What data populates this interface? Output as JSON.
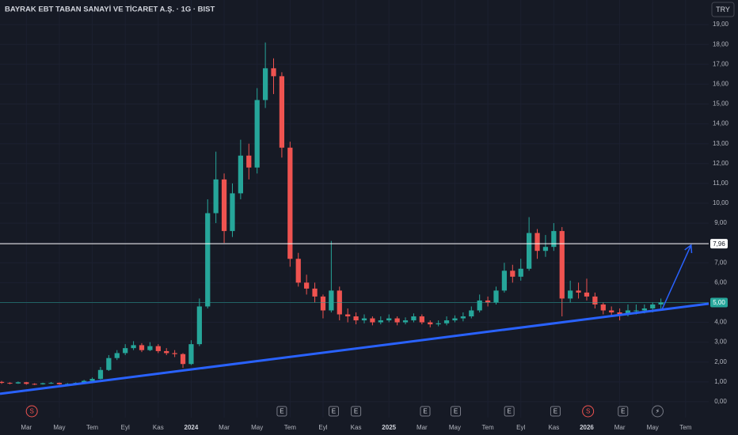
{
  "chart_data": {
    "type": "candlestick",
    "title": "BAYRAK EBT TABAN SANAYİ VE TİCARET A.Ş. · 1G · BIST",
    "currency": "TRY",
    "up_color": "#26a69a",
    "down_color": "#ef5350",
    "x": [
      0.5,
      1,
      1.5,
      2,
      2.5,
      3,
      3.5,
      4,
      4.5,
      5,
      5.5,
      6,
      6.5,
      7,
      7.5,
      8,
      8.5,
      9,
      9.5,
      10,
      10.5,
      11,
      11.5,
      12,
      12.5,
      13,
      13.5,
      14,
      14.5,
      15,
      15.5,
      16,
      16.5,
      17,
      17.5,
      18,
      18.5,
      19,
      19.5,
      20,
      20.5,
      21,
      21.5,
      22,
      22.5,
      23,
      23.5,
      24,
      24.5,
      25,
      25.5,
      26,
      26.5,
      27,
      27.5,
      28,
      28.5,
      29,
      29.5,
      30,
      30.5,
      31,
      31.5,
      32,
      32.5,
      33,
      33.5,
      34,
      34.5,
      35,
      35.5,
      36,
      36.5,
      37,
      37.5,
      38,
      38.5,
      39,
      39.5,
      40,
      40.5
    ],
    "ohlc": [
      [
        1.0,
        1.05,
        0.9,
        0.95
      ],
      [
        0.95,
        0.98,
        0.88,
        0.92
      ],
      [
        0.92,
        1.02,
        0.9,
        0.98
      ],
      [
        0.98,
        1.0,
        0.86,
        0.9
      ],
      [
        0.9,
        0.93,
        0.84,
        0.88
      ],
      [
        0.88,
        0.96,
        0.86,
        0.93
      ],
      [
        0.93,
        0.99,
        0.9,
        0.95
      ],
      [
        0.95,
        0.97,
        0.85,
        0.88
      ],
      [
        0.88,
        0.94,
        0.86,
        0.9
      ],
      [
        0.9,
        0.98,
        0.88,
        0.95
      ],
      [
        0.95,
        1.1,
        0.93,
        1.05
      ],
      [
        1.05,
        1.22,
        1.02,
        1.15
      ],
      [
        1.15,
        1.75,
        1.12,
        1.6
      ],
      [
        1.6,
        2.35,
        1.55,
        2.2
      ],
      [
        2.2,
        2.6,
        2.1,
        2.45
      ],
      [
        2.45,
        2.9,
        2.35,
        2.7
      ],
      [
        2.7,
        3.05,
        2.6,
        2.85
      ],
      [
        2.85,
        2.95,
        2.5,
        2.6
      ],
      [
        2.6,
        3.0,
        2.55,
        2.8
      ],
      [
        2.8,
        2.9,
        2.45,
        2.55
      ],
      [
        2.55,
        2.7,
        2.35,
        2.45
      ],
      [
        2.45,
        2.6,
        2.25,
        2.4
      ],
      [
        2.4,
        2.45,
        1.7,
        1.9
      ],
      [
        1.9,
        3.1,
        1.85,
        2.9
      ],
      [
        2.9,
        5.2,
        2.8,
        4.8
      ],
      [
        4.8,
        10.2,
        4.7,
        9.5
      ],
      [
        9.5,
        12.6,
        9.0,
        11.2
      ],
      [
        11.2,
        11.5,
        8.0,
        8.6
      ],
      [
        8.6,
        11.0,
        8.3,
        10.5
      ],
      [
        10.5,
        13.2,
        10.2,
        12.4
      ],
      [
        12.4,
        13.0,
        11.2,
        11.8
      ],
      [
        11.8,
        15.8,
        11.5,
        15.2
      ],
      [
        15.2,
        18.1,
        14.8,
        16.8
      ],
      [
        16.8,
        17.3,
        15.5,
        16.4
      ],
      [
        16.4,
        16.6,
        12.3,
        12.8
      ],
      [
        12.8,
        13.1,
        6.8,
        7.2
      ],
      [
        7.2,
        7.5,
        5.8,
        6.0
      ],
      [
        6.0,
        6.4,
        5.4,
        5.7
      ],
      [
        5.7,
        6.0,
        5.0,
        5.3
      ],
      [
        5.3,
        5.4,
        4.2,
        4.6
      ],
      [
        4.6,
        8.1,
        4.5,
        5.6
      ],
      [
        5.6,
        5.8,
        4.1,
        4.4
      ],
      [
        4.4,
        4.7,
        4.0,
        4.3
      ],
      [
        4.3,
        4.5,
        3.9,
        4.1
      ],
      [
        4.1,
        4.4,
        3.95,
        4.2
      ],
      [
        4.2,
        4.3,
        3.85,
        4.0
      ],
      [
        4.0,
        4.3,
        3.9,
        4.1
      ],
      [
        4.1,
        4.4,
        4.0,
        4.2
      ],
      [
        4.2,
        4.3,
        3.85,
        4.0
      ],
      [
        4.0,
        4.25,
        3.9,
        4.1
      ],
      [
        4.1,
        4.45,
        4.0,
        4.3
      ],
      [
        4.3,
        4.4,
        3.9,
        4.0
      ],
      [
        4.0,
        4.1,
        3.75,
        3.9
      ],
      [
        3.9,
        4.1,
        3.8,
        3.95
      ],
      [
        3.95,
        4.3,
        3.85,
        4.1
      ],
      [
        4.1,
        4.35,
        4.0,
        4.2
      ],
      [
        4.2,
        4.5,
        4.05,
        4.3
      ],
      [
        4.3,
        4.8,
        4.2,
        4.6
      ],
      [
        4.6,
        5.4,
        4.5,
        5.1
      ],
      [
        5.1,
        5.3,
        4.8,
        5.0
      ],
      [
        5.0,
        5.8,
        4.9,
        5.6
      ],
      [
        5.6,
        7.0,
        5.5,
        6.6
      ],
      [
        6.6,
        6.9,
        6.0,
        6.3
      ],
      [
        6.3,
        7.2,
        6.1,
        6.7
      ],
      [
        6.7,
        9.3,
        6.6,
        8.5
      ],
      [
        8.5,
        8.7,
        7.2,
        7.6
      ],
      [
        7.6,
        8.4,
        7.3,
        7.8
      ],
      [
        7.8,
        9.0,
        7.6,
        8.6
      ],
      [
        8.6,
        8.8,
        4.3,
        5.2
      ],
      [
        5.2,
        6.1,
        5.0,
        5.6
      ],
      [
        5.6,
        6.0,
        5.2,
        5.5
      ],
      [
        5.5,
        6.2,
        5.1,
        5.3
      ],
      [
        5.3,
        5.5,
        4.7,
        4.9
      ],
      [
        4.9,
        5.0,
        4.4,
        4.6
      ],
      [
        4.6,
        4.8,
        4.3,
        4.5
      ],
      [
        4.5,
        4.7,
        4.1,
        4.4
      ],
      [
        4.4,
        4.9,
        4.3,
        4.6
      ],
      [
        4.6,
        4.9,
        4.4,
        4.6
      ],
      [
        4.6,
        4.9,
        4.45,
        4.7
      ],
      [
        4.7,
        5.0,
        4.5,
        4.9
      ],
      [
        4.9,
        5.2,
        4.7,
        5.0
      ]
    ],
    "xlim": [
      0.4,
      43.4
    ],
    "xticks": [
      {
        "value": 2,
        "label": "Mar"
      },
      {
        "value": 4,
        "label": "May"
      },
      {
        "value": 6,
        "label": "Tem"
      },
      {
        "value": 8,
        "label": "Eyl"
      },
      {
        "value": 10,
        "label": "Kas"
      },
      {
        "value": 12,
        "label": "2024"
      },
      {
        "value": 14,
        "label": "Mar"
      },
      {
        "value": 16,
        "label": "May"
      },
      {
        "value": 18,
        "label": "Tem"
      },
      {
        "value": 20,
        "label": "Eyl"
      },
      {
        "value": 22,
        "label": "Kas"
      },
      {
        "value": 24,
        "label": "2025"
      },
      {
        "value": 26,
        "label": "Mar"
      },
      {
        "value": 28,
        "label": "May"
      },
      {
        "value": 30,
        "label": "Tem"
      },
      {
        "value": 32,
        "label": "Eyl"
      },
      {
        "value": 34,
        "label": "Kas"
      },
      {
        "value": 36,
        "label": "2026"
      },
      {
        "value": 38,
        "label": "Mar"
      },
      {
        "value": 40,
        "label": "May"
      },
      {
        "value": 42,
        "label": "Tem"
      }
    ],
    "ylim": [
      -0.8,
      20.24
    ],
    "yticks": [
      {
        "value": 0,
        "label": "0,00"
      },
      {
        "value": 1,
        "label": "1,00"
      },
      {
        "value": 2,
        "label": "2,00"
      },
      {
        "value": 3,
        "label": "3,00"
      },
      {
        "value": 4,
        "label": "4,00"
      },
      {
        "value": 5,
        "label": "5,00"
      },
      {
        "value": 6,
        "label": "6,00"
      },
      {
        "value": 7,
        "label": "7,00"
      },
      {
        "value": 8,
        "label": "8,00"
      },
      {
        "value": 9,
        "label": "9,00"
      },
      {
        "value": 10,
        "label": "10,00"
      },
      {
        "value": 11,
        "label": "11,00"
      },
      {
        "value": 12,
        "label": "12,00"
      },
      {
        "value": 13,
        "label": "13,00"
      },
      {
        "value": 14,
        "label": "14,00"
      },
      {
        "value": 15,
        "label": "15,00"
      },
      {
        "value": 16,
        "label": "16,00"
      },
      {
        "value": 17,
        "label": "17,00"
      },
      {
        "value": 18,
        "label": "18,00"
      },
      {
        "value": 19,
        "label": "19,00"
      }
    ],
    "grid": true,
    "hlines": [
      {
        "value": 7.96,
        "label": "7,96",
        "color": "#ffffff"
      },
      {
        "value": 5.0,
        "label": "5,00",
        "color": "#26a69a"
      }
    ],
    "trend_line": {
      "x": [
        0.4,
        43.4
      ],
      "y": [
        0.4,
        4.94
      ],
      "color": "#2962ff"
    },
    "arrow": {
      "x": [
        40.55,
        42.33
      ],
      "y": [
        4.62,
        7.89
      ],
      "color": "#2962ff"
    },
    "events": [
      {
        "x": 2.33,
        "label": "S"
      },
      {
        "x": 17.5,
        "label": "E"
      },
      {
        "x": 20.65,
        "label": "E"
      },
      {
        "x": 22.0,
        "label": "E"
      },
      {
        "x": 26.2,
        "label": "E"
      },
      {
        "x": 28.05,
        "label": "E"
      },
      {
        "x": 31.3,
        "label": "E"
      },
      {
        "x": 34.1,
        "label": "E"
      },
      {
        "x": 36.08,
        "label": "S"
      },
      {
        "x": 38.2,
        "label": "E"
      },
      {
        "x": 40.3,
        "label": "⚡"
      }
    ]
  }
}
